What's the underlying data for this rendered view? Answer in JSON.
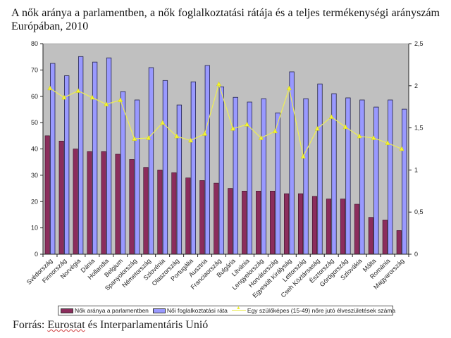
{
  "title": "A nők aránya a parlamentben, a nők foglalkoztatási rátája és a teljes termékenységi arányszám Európában, 2010",
  "source": {
    "prefix": "Forrás: ",
    "underlined": "Eurostat",
    "suffix": " és Interparlamentáris Unió"
  },
  "chart_data": {
    "type": "bar",
    "title": "A nők aránya a parlamentben, a nők foglalkoztatási rátája és a teljes termékenységi arányszám Európában, 2010",
    "xlabel": "",
    "ylabel": "",
    "ylim": [
      0,
      80
    ],
    "y2lim": [
      0,
      2.5
    ],
    "yticks": [
      "0",
      "10",
      "20",
      "30",
      "40",
      "50",
      "60",
      "70",
      "80"
    ],
    "y2ticks": [
      "0",
      "0,5",
      "1",
      "1,5",
      "2",
      "2,5"
    ],
    "grid": false,
    "legend_position": "bottom",
    "plot_background": "#c0c0c0",
    "categories": [
      "Svédország",
      "Finnország",
      "Norvégia",
      "Dánia",
      "Hollandia",
      "Belgium",
      "Spanyolország",
      "Németország",
      "Szlovénia",
      "Olaszország",
      "Portugália",
      "Ausztria",
      "Franciaország",
      "Bulgária",
      "Litvánia",
      "Lengyelország",
      "Horvátország",
      "Egyesült Királyság",
      "Lettország",
      "Cseh Köztársaság",
      "Észtország",
      "Görögország",
      "Szlovákia",
      "Málta",
      "Románia",
      "Magyarország"
    ],
    "series": [
      {
        "name": "Nők aránya a parlamentben",
        "type": "bar",
        "axis": "left",
        "color": "#8b2d5c",
        "values": [
          45,
          43,
          40,
          39,
          39,
          38,
          36,
          33,
          32,
          31,
          29,
          28,
          27,
          25,
          24,
          24,
          24,
          23,
          23,
          22,
          21,
          21,
          19,
          14,
          13,
          9
        ]
      },
      {
        "name": "Női foglalkoztatási ráta",
        "type": "bar",
        "axis": "left",
        "color": "#9999ff",
        "values": [
          72.5,
          67.8,
          75.1,
          73.0,
          74.6,
          61.8,
          58.6,
          70.9,
          66.0,
          56.7,
          65.5,
          71.7,
          63.6,
          59.6,
          57.8,
          59.1,
          53.7,
          69.3,
          59.1,
          64.7,
          61.0,
          59.4,
          58.6,
          55.9,
          58.6,
          55.1
        ]
      },
      {
        "name": "Egy szülőképes (15-49) nőre jutó élveszületések száma",
        "type": "line",
        "axis": "right",
        "color": "#f0f040",
        "values": [
          1.97,
          1.86,
          1.94,
          1.86,
          1.78,
          1.83,
          1.37,
          1.38,
          1.56,
          1.4,
          1.35,
          1.43,
          2.02,
          1.49,
          1.54,
          1.38,
          1.46,
          1.97,
          1.16,
          1.49,
          1.63,
          1.51,
          1.4,
          1.38,
          1.32,
          1.25
        ]
      }
    ]
  }
}
